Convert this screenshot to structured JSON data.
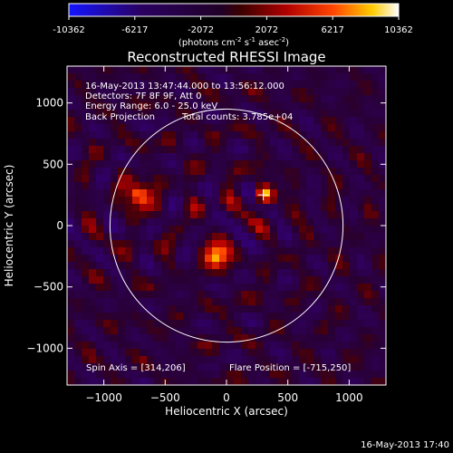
{
  "chart_data": {
    "type": "heatmap",
    "title": "Reconstructed RHESSI Image",
    "xlabel": "Heliocentric X (arcsec)",
    "ylabel": "Heliocentric Y (arcsec)",
    "xlim": [
      -1300,
      1300
    ],
    "ylim": [
      -1300,
      1300
    ],
    "x_ticks": [
      -1000,
      -500,
      0,
      500,
      1000
    ],
    "y_ticks": [
      -1000,
      -500,
      0,
      500,
      1000
    ],
    "colorbar": {
      "ticks": [
        "-10362",
        "-6217",
        "-2072",
        "2072",
        "6217",
        "10362"
      ],
      "min": -10362,
      "max": 10362,
      "unit_prefix": "(photons cm",
      "unit_exp1": "-2",
      "unit_mid": " s",
      "unit_exp2": "-1",
      "unit_suffix": " asec",
      "unit_exp3": "-2",
      "unit_close": ")"
    },
    "annotations": {
      "time_range": "16-May-2013 13:47:44.000 to 13:56:12.000",
      "detectors": "Detectors: 7F 8F 9F, Att 0",
      "energy": "Energy Range: 6.0 - 25.0 keV",
      "method": "Back Projection",
      "counts": "Total counts: 3.785e+04",
      "spin_axis": "Spin Axis = [314,206]",
      "flare_position": "Flare Position = [-715,250]"
    },
    "solar_limb_radius": 950,
    "center_marker": [
      300,
      250
    ],
    "sources": [
      {
        "x": -715,
        "y": 250,
        "rel_intensity": 1.0
      },
      {
        "x": -80,
        "y": -250,
        "rel_intensity": 0.95
      },
      {
        "x": 300,
        "y": 250,
        "rel_intensity": 0.75
      }
    ],
    "timestamp": "16-May-2013 17:40"
  }
}
